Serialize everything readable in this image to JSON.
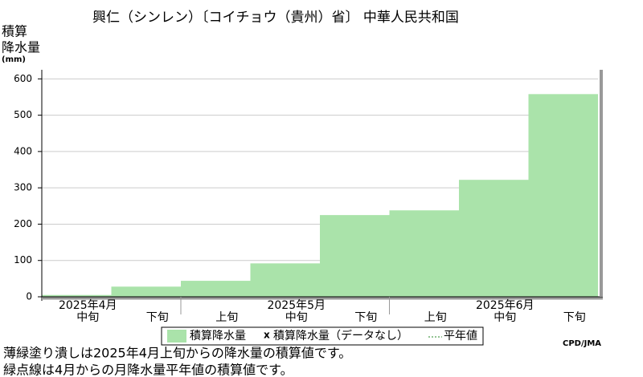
{
  "chart_data": {
    "type": "bar",
    "title": "興仁（シンレン）〔コイチョウ（貴州）省〕 中華人民共和国",
    "ylabel": [
      "積算",
      "降水量",
      "(mm)"
    ],
    "categories": [
      "中旬",
      "下旬",
      "上旬",
      "中旬",
      "下旬",
      "上旬",
      "中旬",
      "下旬"
    ],
    "months": [
      "2025年4月",
      "2025年5月",
      "2025年6月"
    ],
    "series": [
      {
        "name": "積算降水量",
        "color": "#aae3aa",
        "values": [
          5,
          28,
          44,
          92,
          225,
          238,
          322,
          558
        ]
      }
    ],
    "legend_extra": [
      "積算降水量（データなし）",
      "平年値"
    ],
    "ylim": [
      0,
      625
    ],
    "yticks": [
      0,
      100,
      200,
      300,
      400,
      500,
      600
    ],
    "grid": true,
    "credit": "CPD/JMA",
    "notes": [
      "薄緑塗り潰しは2025年4月上旬からの降水量の積算値です。",
      "緑点線は4月からの月降水量平年値の積算値です。"
    ]
  }
}
